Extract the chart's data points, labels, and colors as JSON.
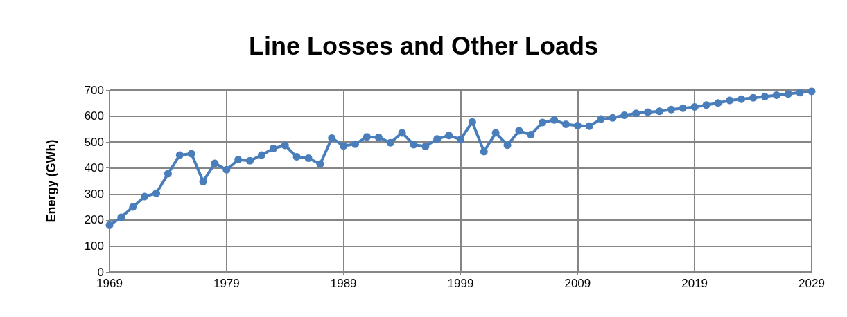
{
  "chart_data": {
    "type": "line",
    "title": "Line Losses and Other Loads",
    "ylabel": "Energy (GWh)",
    "x": [
      1969,
      1970,
      1971,
      1972,
      1973,
      1974,
      1975,
      1976,
      1977,
      1978,
      1979,
      1980,
      1981,
      1982,
      1983,
      1984,
      1985,
      1986,
      1987,
      1988,
      1989,
      1990,
      1991,
      1992,
      1993,
      1994,
      1995,
      1996,
      1997,
      1998,
      1999,
      2000,
      2001,
      2002,
      2003,
      2004,
      2005,
      2006,
      2007,
      2008,
      2009,
      2010,
      2011,
      2012,
      2013,
      2014,
      2015,
      2016,
      2017,
      2018,
      2019,
      2020,
      2021,
      2022,
      2023,
      2024,
      2025,
      2026,
      2027,
      2028,
      2029
    ],
    "series": [
      {
        "color": "#4a7ebb",
        "values": [
          180,
          210,
          250,
          290,
          303,
          378,
          450,
          455,
          348,
          418,
          393,
          432,
          428,
          450,
          475,
          487,
          443,
          438,
          415,
          515,
          485,
          492,
          520,
          518,
          497,
          535,
          490,
          483,
          512,
          525,
          510,
          577,
          463,
          535,
          488,
          543,
          528,
          575,
          585,
          568,
          563,
          561,
          588,
          593,
          603,
          610,
          615,
          618,
          625,
          630,
          635,
          642,
          650,
          660,
          665,
          670,
          675,
          680,
          685,
          690,
          695
        ]
      }
    ],
    "xlim": [
      1969,
      2029
    ],
    "xticks": [
      1969,
      1979,
      1989,
      1999,
      2009,
      2019,
      2029
    ],
    "ylim": [
      0,
      700
    ],
    "yticks": [
      0,
      100,
      200,
      300,
      400,
      500,
      600,
      700
    ],
    "grid": true,
    "marker": "circle",
    "line_style": "solid"
  }
}
